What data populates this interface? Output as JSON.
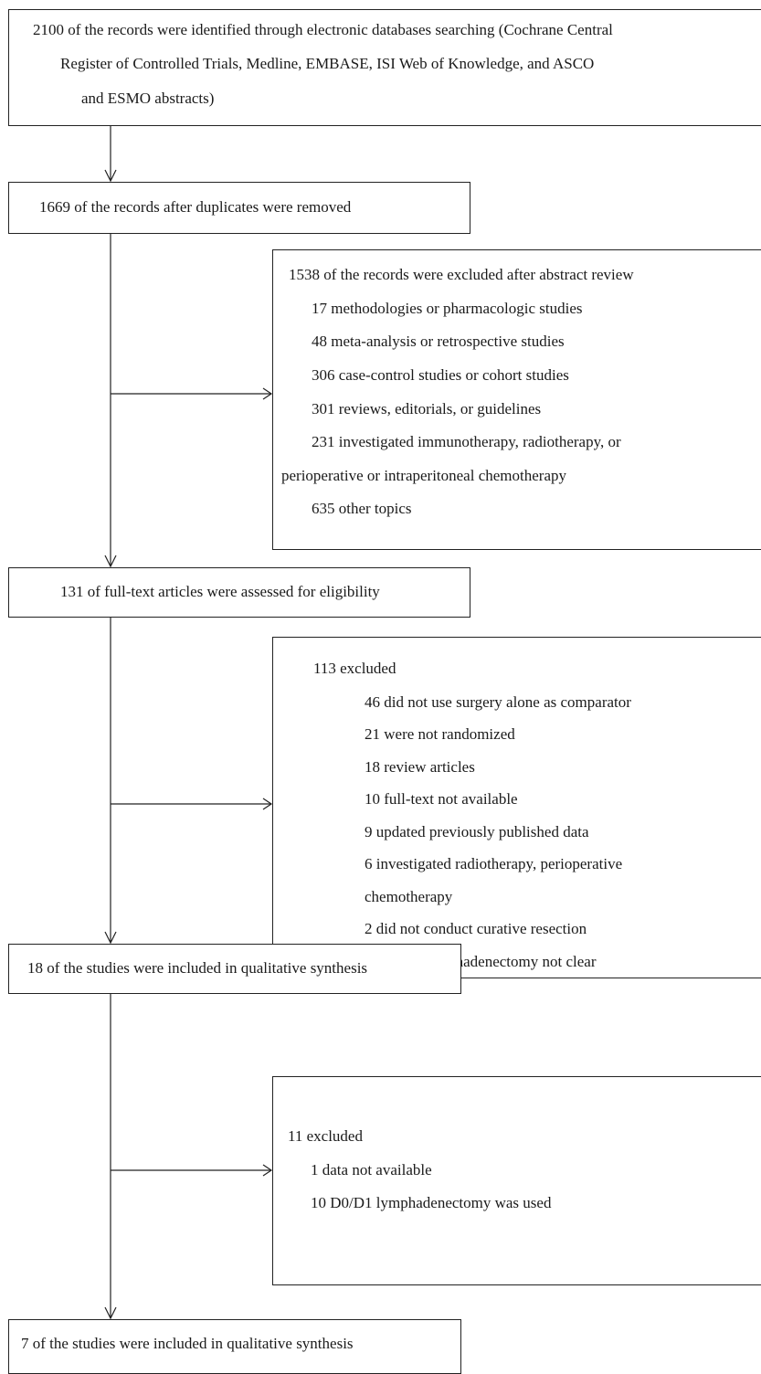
{
  "flow": {
    "identified": {
      "lines": [
        "2100 of the records were identified through electronic databases searching (Cochrane Central",
        "Register of Controlled Trials, Medline, EMBASE, ISI Web of Knowledge, and ASCO",
        "and ESMO abstracts)"
      ]
    },
    "duplicates_removed": {
      "label": "1669 of the records after duplicates were removed"
    },
    "abstract_excluded": {
      "header": "1538 of the records were excluded after abstract review",
      "items": [
        "17 methodologies or pharmacologic studies",
        "48 meta-analysis or retrospective studies",
        "306 case-control studies or cohort studies",
        "301 reviews, editorials, or guidelines",
        "231 investigated immunotherapy, radiotherapy, or",
        "perioperative or intraperitoneal chemotherapy",
        "635 other topics"
      ]
    },
    "fulltext_assessed": {
      "label": "131 of full-text articles were assessed for eligibility"
    },
    "fulltext_excluded": {
      "header": "113 excluded",
      "items": [
        "46 did not use surgery alone as comparator",
        "21 were not randomized",
        "18 review articles",
        "10 full-text not available",
        "9 updated previously published data",
        "6 investigated radiotherapy, perioperative",
        "chemotherapy",
        "2 did not conduct curative resection",
        "1 type of lymphadenectomy not clear"
      ]
    },
    "qualitative_included": {
      "label": "18 of the studies were included in qualitative synthesis"
    },
    "final_excluded": {
      "header": "11 excluded",
      "items": [
        "1 data not available",
        "10 D0/D1 lymphadenectomy was used"
      ]
    },
    "final_included": {
      "label": "7 of the studies were included in qualitative synthesis"
    }
  }
}
